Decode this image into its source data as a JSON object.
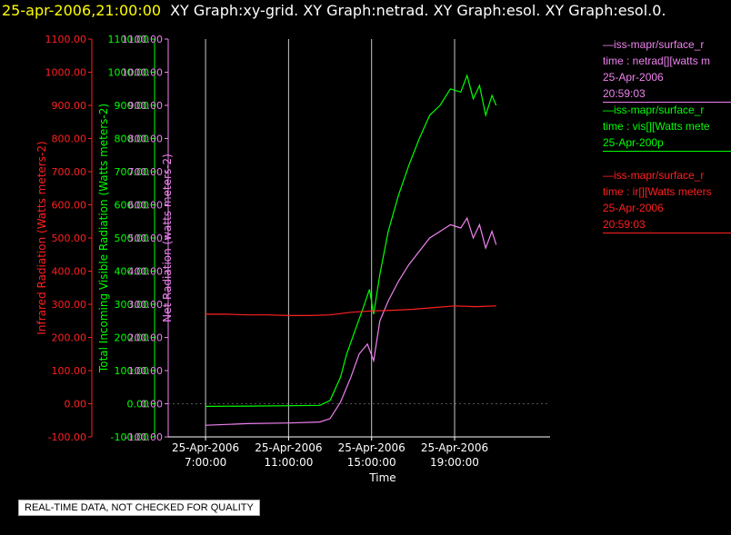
{
  "header": {
    "timestamp": "25-apr-2006,21:00:00",
    "titles": "XY Graph:xy-grid.  XY Graph:netrad.  XY Graph:esol.  XY Graph:esol.0."
  },
  "footer": {
    "quality_note": "REAL-TIME DATA, NOT CHECKED FOR QUALITY"
  },
  "colors": {
    "ir": "#ff2020",
    "vis": "#00ff00",
    "net": "#ee82ee",
    "grid": "#c8c8c8",
    "axis": "#ffffff"
  },
  "legend": [
    {
      "name": "legend-net",
      "color": "#ee82ee",
      "lines": [
        "—iss-mapr/surface_r",
        "time : netrad[][watts m",
        "25-Apr-2006",
        "20:59:03"
      ]
    },
    {
      "name": "legend-vis",
      "color": "#00ff00",
      "lines": [
        "—iss-mapr/surface_r",
        "time : vis[][Watts mete",
        "25-Apr-200p"
      ]
    },
    {
      "name": "legend-ir",
      "color": "#ff2020",
      "lines": [
        "—iss-mapr/surface_r",
        "time : ir[][Watts meters",
        "25-Apr-2006",
        "20:59:03"
      ]
    }
  ],
  "chart_data": {
    "type": "line",
    "xlabel": "Time",
    "x_ticks": [
      {
        "hours": 7,
        "line1": "25-Apr-2006",
        "line2": "7:00:00"
      },
      {
        "hours": 11,
        "line1": "25-Apr-2006",
        "line2": "11:00:00"
      },
      {
        "hours": 15,
        "line1": "25-Apr-2006",
        "line2": "15:00:00"
      },
      {
        "hours": 19,
        "line1": "25-Apr-2006",
        "line2": "19:00:00"
      }
    ],
    "xlim": [
      5.2,
      23.6
    ],
    "ylim": [
      -100,
      1100
    ],
    "y_ticks": [
      -100,
      0,
      100,
      200,
      300,
      400,
      500,
      600,
      700,
      800,
      900,
      1000,
      1100
    ],
    "y_tick_labels": [
      "-100.00",
      "0.00",
      "100.00",
      "200.00",
      "300.00",
      "400.00",
      "500.00",
      "600.00",
      "700.00",
      "800.00",
      "900.00",
      "1000.00",
      "1100.00"
    ],
    "axes": [
      {
        "name": "ir-axis",
        "label": "Infrared Radiation (Watts meters-2)",
        "color": "#ff2020"
      },
      {
        "name": "vis-axis",
        "label": "Total Incoming Visible Radiation (Watts meters-2)",
        "color": "#00ff00"
      },
      {
        "name": "net-axis",
        "label": "Net Radiation (watts meters-2)",
        "color": "#ee82ee"
      }
    ],
    "series": [
      {
        "name": "vis",
        "color": "#00ff00",
        "x": [
          7.0,
          9.0,
          11.0,
          12.5,
          13.0,
          13.5,
          13.8,
          14.2,
          14.6,
          14.9,
          15.1,
          15.4,
          15.8,
          16.3,
          16.8,
          17.3,
          17.8,
          18.3,
          18.8,
          19.3,
          19.6,
          19.9,
          20.2,
          20.5,
          20.8,
          21.0
        ],
        "y": [
          -8,
          -7,
          -6,
          -5,
          10,
          80,
          150,
          220,
          290,
          345,
          270,
          390,
          520,
          630,
          720,
          800,
          870,
          900,
          950,
          940,
          990,
          920,
          960,
          870,
          930,
          900
        ]
      },
      {
        "name": "net",
        "color": "#ee82ee",
        "x": [
          7.0,
          9.0,
          11.0,
          12.5,
          13.0,
          13.5,
          14.0,
          14.4,
          14.8,
          15.1,
          15.4,
          15.8,
          16.3,
          16.8,
          17.3,
          17.8,
          18.3,
          18.8,
          19.3,
          19.6,
          19.9,
          20.2,
          20.5,
          20.8,
          21.0
        ],
        "y": [
          -65,
          -60,
          -58,
          -55,
          -45,
          5,
          80,
          150,
          180,
          130,
          250,
          310,
          370,
          420,
          460,
          500,
          520,
          540,
          530,
          560,
          500,
          540,
          470,
          520,
          480
        ]
      },
      {
        "name": "ir",
        "color": "#ff2020",
        "x": [
          7.0,
          8.0,
          9.0,
          10.0,
          11.0,
          12.0,
          13.0,
          14.0,
          15.0,
          16.0,
          17.0,
          18.0,
          19.0,
          20.0,
          21.0
        ],
        "y": [
          270,
          270,
          268,
          268,
          266,
          266,
          268,
          276,
          280,
          282,
          285,
          290,
          295,
          293,
          295
        ]
      }
    ]
  }
}
